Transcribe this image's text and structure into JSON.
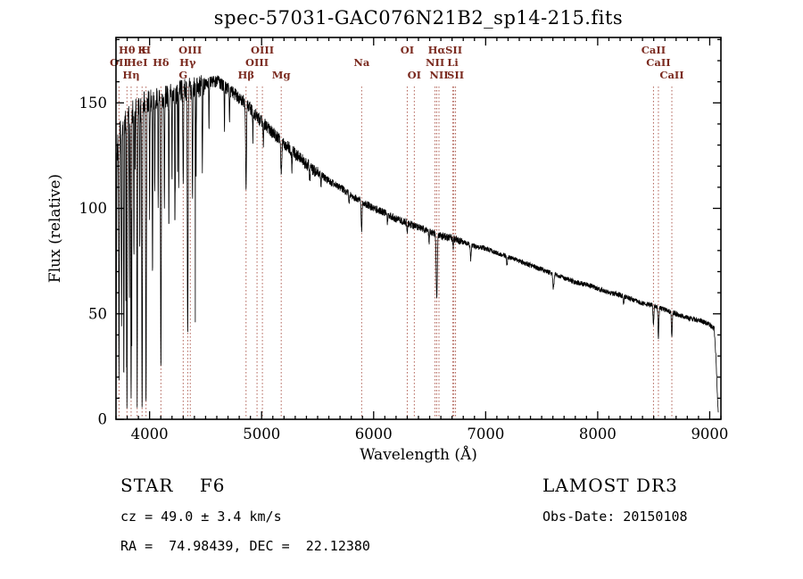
{
  "chart_data": {
    "type": "line",
    "title": "spec-57031-GAC076N21B2_sp14-215.fits",
    "xlabel": "Wavelength (Å)",
    "ylabel": "Flux (relative)",
    "xlim": [
      3700,
      9100
    ],
    "ylim": [
      0,
      181
    ],
    "x_ticks": [
      4000,
      5000,
      6000,
      7000,
      8000,
      9000
    ],
    "y_ticks": [
      0,
      50,
      100,
      150
    ],
    "grid": false,
    "line_color": "#000000",
    "marker_line_color": "#b06055",
    "marker_label_color": "#7b2b20",
    "spectral_lines": [
      {
        "label": "OII",
        "wl": 3727,
        "row": 2
      },
      {
        "label": "Hθ",
        "wl": 3798,
        "row": 1
      },
      {
        "label": "Hη",
        "wl": 3835,
        "row": 3
      },
      {
        "label": "HeI",
        "wl": 3889,
        "row": 2
      },
      {
        "label": "K",
        "wl": 3933,
        "row": 1
      },
      {
        "label": "H",
        "wl": 3968,
        "row": 1
      },
      {
        "label": "Hδ",
        "wl": 4101,
        "row": 2
      },
      {
        "label": "G",
        "wl": 4300,
        "row": 3
      },
      {
        "label": "Hγ",
        "wl": 4340,
        "row": 2
      },
      {
        "label": "OIII",
        "wl": 4363,
        "row": 1
      },
      {
        "label": "Hβ",
        "wl": 4861,
        "row": 3
      },
      {
        "label": "OIII",
        "wl": 4959,
        "row": 2
      },
      {
        "label": "OIII",
        "wl": 5007,
        "row": 1
      },
      {
        "label": "Mg",
        "wl": 5175,
        "row": 3
      },
      {
        "label": "Na",
        "wl": 5893,
        "row": 2
      },
      {
        "label": "OI",
        "wl": 6300,
        "row": 1
      },
      {
        "label": "OI",
        "wl": 6363,
        "row": 3
      },
      {
        "label": "NII",
        "wl": 6548,
        "row": 2
      },
      {
        "label": "Hα",
        "wl": 6563,
        "row": 1
      },
      {
        "label": "NII",
        "wl": 6583,
        "row": 3
      },
      {
        "label": "Li",
        "wl": 6707,
        "row": 2
      },
      {
        "label": "SII",
        "wl": 6716,
        "row": 1
      },
      {
        "label": "SII",
        "wl": 6731,
        "row": 3
      },
      {
        "label": "CaII",
        "wl": 8498,
        "row": 1
      },
      {
        "label": "CaII",
        "wl": 8542,
        "row": 2
      },
      {
        "label": "CaII",
        "wl": 8662,
        "row": 3
      }
    ],
    "continuum": [
      [
        3700,
        2
      ],
      [
        3704,
        60
      ],
      [
        3708,
        120
      ],
      [
        3715,
        130
      ],
      [
        3730,
        136
      ],
      [
        3750,
        139
      ],
      [
        3775,
        141
      ],
      [
        3800,
        143
      ],
      [
        3830,
        145
      ],
      [
        3860,
        146
      ],
      [
        3900,
        148
      ],
      [
        3940,
        150
      ],
      [
        3980,
        151
      ],
      [
        4020,
        151
      ],
      [
        4060,
        152
      ],
      [
        4100,
        152
      ],
      [
        4150,
        153
      ],
      [
        4200,
        154
      ],
      [
        4250,
        155
      ],
      [
        4300,
        156
      ],
      [
        4350,
        157
      ],
      [
        4400,
        157
      ],
      [
        4450,
        158
      ],
      [
        4500,
        159
      ],
      [
        4560,
        160
      ],
      [
        4620,
        160
      ],
      [
        4680,
        157
      ],
      [
        4740,
        155
      ],
      [
        4800,
        152
      ],
      [
        4860,
        150
      ],
      [
        4920,
        146
      ],
      [
        4980,
        142
      ],
      [
        5040,
        139
      ],
      [
        5100,
        136
      ],
      [
        5160,
        133
      ],
      [
        5220,
        130
      ],
      [
        5300,
        126
      ],
      [
        5400,
        121
      ],
      [
        5500,
        117
      ],
      [
        5600,
        113
      ],
      [
        5700,
        110
      ],
      [
        5800,
        106
      ],
      [
        5900,
        103
      ],
      [
        6000,
        100
      ],
      [
        6100,
        98
      ],
      [
        6200,
        95
      ],
      [
        6300,
        93
      ],
      [
        6400,
        91
      ],
      [
        6500,
        89
      ],
      [
        6600,
        87
      ],
      [
        6700,
        86
      ],
      [
        6800,
        84
      ],
      [
        6900,
        82
      ],
      [
        7000,
        81
      ],
      [
        7100,
        79
      ],
      [
        7200,
        77
      ],
      [
        7300,
        75
      ],
      [
        7400,
        73
      ],
      [
        7500,
        71
      ],
      [
        7600,
        69
      ],
      [
        7700,
        67
      ],
      [
        7800,
        65
      ],
      [
        7900,
        64
      ],
      [
        8000,
        62
      ],
      [
        8100,
        60
      ],
      [
        8200,
        59
      ],
      [
        8300,
        57
      ],
      [
        8400,
        55
      ],
      [
        8500,
        54
      ],
      [
        8600,
        52
      ],
      [
        8700,
        50
      ],
      [
        8800,
        48
      ],
      [
        8900,
        47
      ],
      [
        9000,
        45
      ],
      [
        9040,
        43
      ],
      [
        9055,
        30
      ],
      [
        9070,
        10
      ],
      [
        9078,
        2
      ]
    ],
    "absorption_features": [
      [
        3727,
        115,
        3
      ],
      [
        3750,
        95,
        2.5
      ],
      [
        3770,
        125,
        2.5
      ],
      [
        3798,
        135,
        3
      ],
      [
        3820,
        85,
        2
      ],
      [
        3835,
        140,
        3
      ],
      [
        3860,
        75,
        2
      ],
      [
        3889,
        138,
        3
      ],
      [
        3912,
        65,
        2
      ],
      [
        3933,
        148,
        3.5
      ],
      [
        3968,
        143,
        3.5
      ],
      [
        4000,
        55,
        2
      ],
      [
        4026,
        85,
        2.5
      ],
      [
        4046,
        45,
        2
      ],
      [
        4077,
        55,
        2
      ],
      [
        4101,
        132,
        3.5
      ],
      [
        4132,
        55,
        2
      ],
      [
        4172,
        65,
        2
      ],
      [
        4200,
        40,
        2
      ],
      [
        4226,
        60,
        2.5
      ],
      [
        4260,
        42,
        2
      ],
      [
        4300,
        48,
        3
      ],
      [
        4340,
        122,
        3.5
      ],
      [
        4383,
        52,
        2.5
      ],
      [
        4415,
        38,
        2
      ],
      [
        4471,
        38,
        2.5
      ],
      [
        4530,
        24,
        2
      ],
      [
        4668,
        22,
        2
      ],
      [
        4713,
        15,
        2
      ],
      [
        4861,
        40,
        4
      ],
      [
        4922,
        14,
        2.5
      ],
      [
        5015,
        10,
        2.5
      ],
      [
        5175,
        14,
        5
      ],
      [
        5270,
        9,
        3
      ],
      [
        5430,
        7,
        3
      ],
      [
        5530,
        6,
        3
      ],
      [
        5780,
        5,
        3
      ],
      [
        5893,
        13,
        4
      ],
      [
        6122,
        4,
        3
      ],
      [
        6300,
        4,
        3
      ],
      [
        6495,
        5,
        3
      ],
      [
        6563,
        30,
        5
      ],
      [
        6710,
        4,
        3
      ],
      [
        6867,
        7,
        4
      ],
      [
        7190,
        4,
        4
      ],
      [
        7605,
        7,
        5
      ],
      [
        8230,
        4,
        4
      ],
      [
        8498,
        9,
        4
      ],
      [
        8542,
        14,
        4
      ],
      [
        8662,
        12,
        4
      ]
    ],
    "noise_bands": [
      {
        "upto": 4500,
        "amp": 5.5
      },
      {
        "upto": 5500,
        "amp": 3.0
      },
      {
        "upto": 6800,
        "amp": 1.8
      },
      {
        "upto": 9100,
        "amp": 1.2
      }
    ],
    "noise_spikes": {
      "upto": 4470,
      "prob": 0.02,
      "max_extra": 110
    },
    "noise_seed": 20150108
  },
  "footer": {
    "class_label": "STAR    F6",
    "cz": "cz = 49.0 ± 3.4 km/s",
    "radec": "RA =  74.98439, DEC =  22.12380",
    "survey": "LAMOST DR3",
    "obs_date": "Obs-Date: 20150108"
  }
}
